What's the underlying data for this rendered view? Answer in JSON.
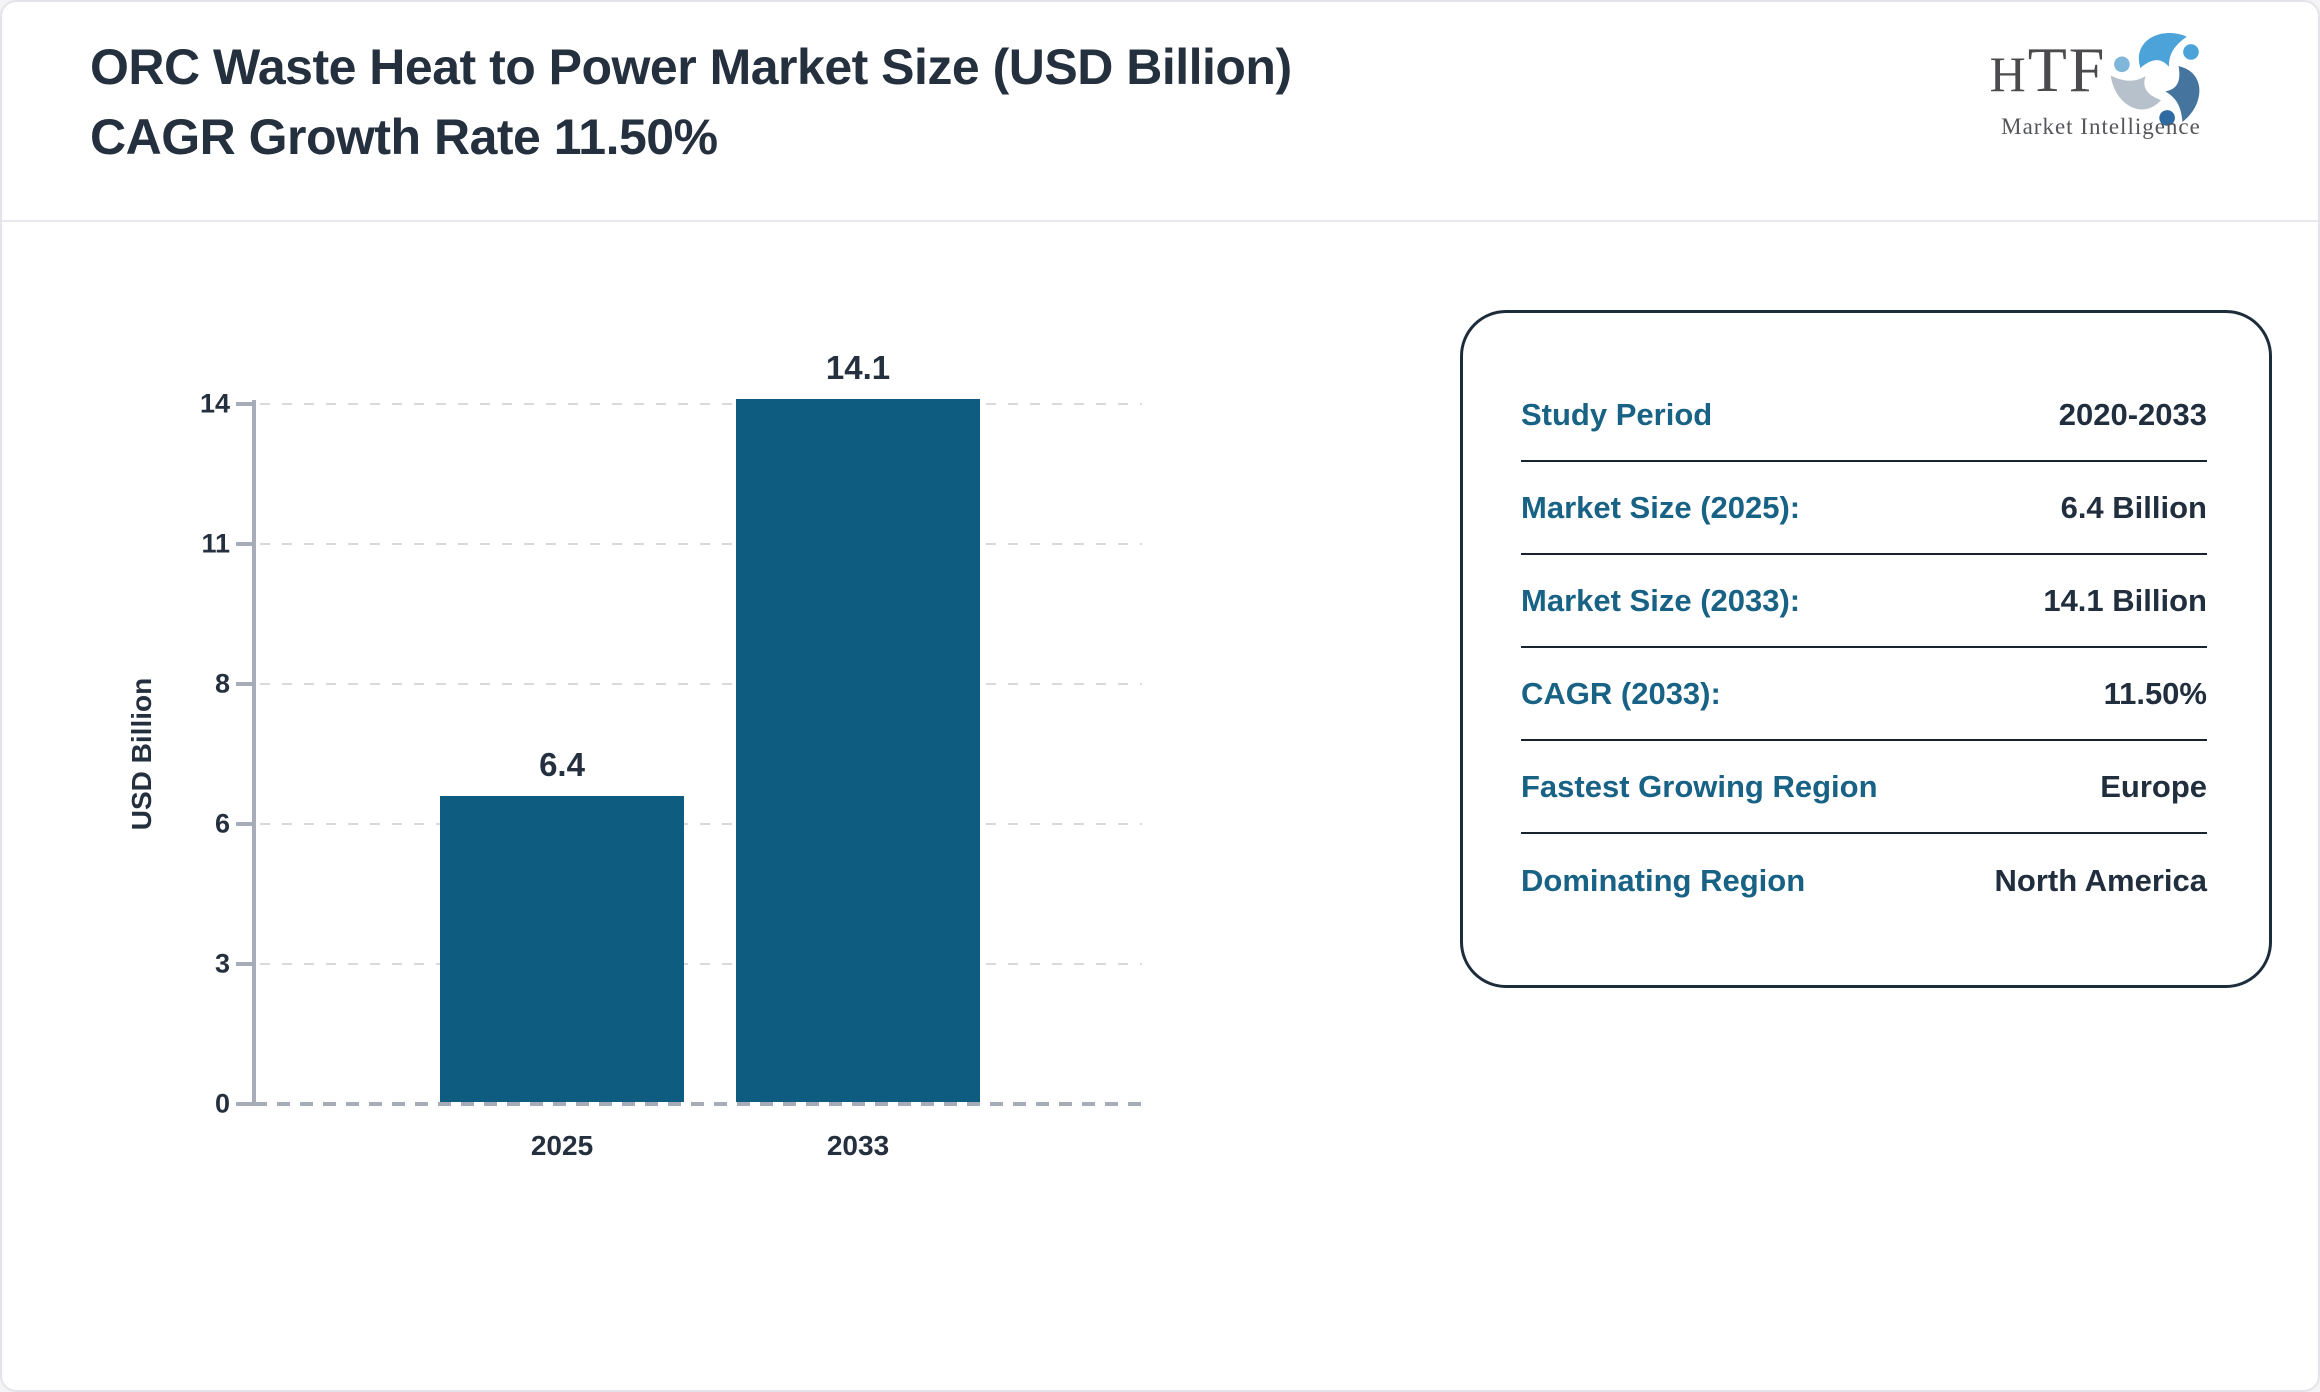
{
  "page": {
    "title": "ORC Waste Heat to Power Market Size (USD Billion) CAGR Growth Rate 11.50%"
  },
  "logo": {
    "brand": "HTF",
    "tagline": "Market Intelligence",
    "icon": "swirl-figures-icon",
    "icon_colors": {
      "sky_blue": "#4ba3d9",
      "pale_gray": "#b7c1cb",
      "steel_blue": "#45759e",
      "dot_blue": "#2f6ba3"
    }
  },
  "chart_data": {
    "type": "bar",
    "title": "ORC Waste Heat to Power Market Size (USD Billion) CAGR Growth Rate 11.50%",
    "categories": [
      "2025",
      "2033"
    ],
    "values": [
      6.4,
      14.1
    ],
    "bar_labels": [
      "6.4",
      "14.1"
    ],
    "xlabel": "",
    "ylabel": "USD Billion",
    "yticks": [
      0,
      3,
      6,
      8,
      11,
      14
    ],
    "ylim": [
      0,
      14.1
    ],
    "grid": "horizontal-dashed",
    "legend": "none",
    "bar_color": "#0e5d80"
  },
  "panel": {
    "rows": [
      {
        "label": "Study Period",
        "value": "2020-2033"
      },
      {
        "label": "Market Size (2025):",
        "value": "6.4 Billion"
      },
      {
        "label": "Market Size (2033):",
        "value": "14.1 Billion"
      },
      {
        "label": "CAGR (2033):",
        "value": "11.50%"
      },
      {
        "label": "Fastest Growing Region",
        "value": "Europe"
      },
      {
        "label": "Dominating Region",
        "value": "North America"
      }
    ]
  },
  "colors": {
    "title_navy": "#25303f",
    "bar_teal": "#0e5d80",
    "label_teal": "#186285",
    "value_navy": "#202e3e",
    "panel_border": "#1d2c3b",
    "axis_gray": "#a6adb8",
    "grid_gray": "#d9d9dd",
    "card_border": "#e3e3e9"
  }
}
